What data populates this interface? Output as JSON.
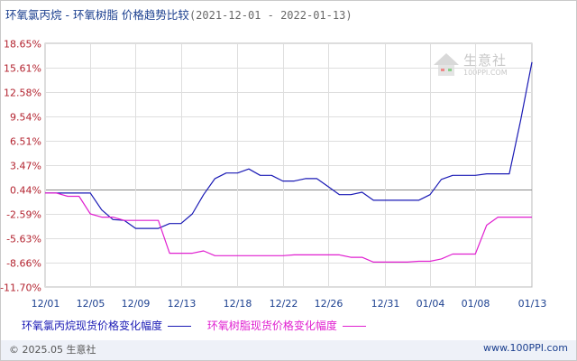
{
  "title": {
    "main": "环氧氯丙烷 - 环氧树脂 价格趋势比较",
    "range": "(2021-12-01 - 2022-01-13)"
  },
  "watermark": {
    "name": "生意社",
    "url": "100PPI.COM"
  },
  "legend": [
    {
      "label": "环氧氯丙烷现货价格变化幅度",
      "color": "#1a1ab5"
    },
    {
      "label": "环氧树脂现货价格变化幅度",
      "color": "#e020d0"
    }
  ],
  "footer": {
    "left": "© 2025.05 生意社",
    "right": "www.100PPI.com"
  },
  "chart_data": {
    "type": "line",
    "title": "环氧氯丙烷 - 环氧树脂 价格趋势比较",
    "ylabel": "",
    "xlabel": "",
    "ylim": [
      -11.7,
      18.65
    ],
    "y_ticks": [
      "18.65%",
      "15.61%",
      "12.58%",
      "9.54%",
      "6.51%",
      "3.47%",
      "0.44%",
      "-2.59%",
      "-5.63%",
      "-8.66%",
      "-11.70%"
    ],
    "y_tick_values": [
      18.65,
      15.61,
      12.58,
      9.54,
      6.51,
      3.47,
      0.44,
      -2.59,
      -5.63,
      -8.66,
      -11.7
    ],
    "x_ticks": [
      "12/01",
      "12/05",
      "12/09",
      "12/13",
      "12/18",
      "12/22",
      "12/26",
      "12/31",
      "01/04",
      "01/08",
      "01/13"
    ],
    "x_tick_values": [
      "2021-12-01",
      "2021-12-05",
      "2021-12-09",
      "2021-12-13",
      "2021-12-18",
      "2021-12-22",
      "2021-12-26",
      "2021-12-31",
      "2022-01-04",
      "2022-01-08",
      "2022-01-13"
    ],
    "grid": true,
    "series": [
      {
        "name": "环氧氯丙烷现货价格变化幅度",
        "color": "#1a1ab5",
        "points": [
          [
            "2021-12-01",
            0.0
          ],
          [
            "2021-12-02",
            0.0
          ],
          [
            "2021-12-03",
            0.0
          ],
          [
            "2021-12-04",
            0.0
          ],
          [
            "2021-12-05",
            0.0
          ],
          [
            "2021-12-06",
            -2.1
          ],
          [
            "2021-12-07",
            -3.3
          ],
          [
            "2021-12-08",
            -3.4
          ],
          [
            "2021-12-09",
            -4.4
          ],
          [
            "2021-12-10",
            -4.4
          ],
          [
            "2021-12-11",
            -4.4
          ],
          [
            "2021-12-12",
            -3.8
          ],
          [
            "2021-12-13",
            -3.8
          ],
          [
            "2021-12-14",
            -2.6
          ],
          [
            "2021-12-15",
            -0.2
          ],
          [
            "2021-12-16",
            1.8
          ],
          [
            "2021-12-17",
            2.5
          ],
          [
            "2021-12-18",
            2.5
          ],
          [
            "2021-12-19",
            3.0
          ],
          [
            "2021-12-20",
            2.2
          ],
          [
            "2021-12-21",
            2.2
          ],
          [
            "2021-12-22",
            1.5
          ],
          [
            "2021-12-23",
            1.5
          ],
          [
            "2021-12-24",
            1.8
          ],
          [
            "2021-12-25",
            1.8
          ],
          [
            "2021-12-26",
            0.8
          ],
          [
            "2021-12-27",
            -0.2
          ],
          [
            "2021-12-28",
            -0.2
          ],
          [
            "2021-12-29",
            0.1
          ],
          [
            "2021-12-30",
            -0.9
          ],
          [
            "2021-12-31",
            -0.9
          ],
          [
            "2022-01-01",
            -0.9
          ],
          [
            "2022-01-02",
            -0.9
          ],
          [
            "2022-01-03",
            -0.9
          ],
          [
            "2022-01-04",
            -0.2
          ],
          [
            "2022-01-05",
            1.7
          ],
          [
            "2022-01-06",
            2.2
          ],
          [
            "2022-01-07",
            2.2
          ],
          [
            "2022-01-08",
            2.2
          ],
          [
            "2022-01-09",
            2.4
          ],
          [
            "2022-01-10",
            2.4
          ],
          [
            "2022-01-11",
            2.4
          ],
          [
            "2022-01-12",
            9.0
          ],
          [
            "2022-01-13",
            16.3
          ]
        ]
      },
      {
        "name": "环氧树脂现货价格变化幅度",
        "color": "#e020d0",
        "points": [
          [
            "2021-12-01",
            0.0
          ],
          [
            "2021-12-02",
            0.0
          ],
          [
            "2021-12-03",
            -0.4
          ],
          [
            "2021-12-04",
            -0.4
          ],
          [
            "2021-12-05",
            -2.6
          ],
          [
            "2021-12-06",
            -3.0
          ],
          [
            "2021-12-07",
            -3.0
          ],
          [
            "2021-12-08",
            -3.4
          ],
          [
            "2021-12-09",
            -3.4
          ],
          [
            "2021-12-10",
            -3.4
          ],
          [
            "2021-12-11",
            -3.4
          ],
          [
            "2021-12-12",
            -7.5
          ],
          [
            "2021-12-13",
            -7.5
          ],
          [
            "2021-12-14",
            -7.5
          ],
          [
            "2021-12-15",
            -7.2
          ],
          [
            "2021-12-16",
            -7.8
          ],
          [
            "2021-12-17",
            -7.8
          ],
          [
            "2021-12-18",
            -7.8
          ],
          [
            "2021-12-19",
            -7.8
          ],
          [
            "2021-12-20",
            -7.8
          ],
          [
            "2021-12-21",
            -7.8
          ],
          [
            "2021-12-22",
            -7.8
          ],
          [
            "2021-12-23",
            -7.7
          ],
          [
            "2021-12-24",
            -7.7
          ],
          [
            "2021-12-25",
            -7.7
          ],
          [
            "2021-12-26",
            -7.7
          ],
          [
            "2021-12-27",
            -7.7
          ],
          [
            "2021-12-28",
            -8.0
          ],
          [
            "2021-12-29",
            -8.0
          ],
          [
            "2021-12-30",
            -8.6
          ],
          [
            "2021-12-31",
            -8.6
          ],
          [
            "2022-01-01",
            -8.6
          ],
          [
            "2022-01-02",
            -8.6
          ],
          [
            "2022-01-03",
            -8.5
          ],
          [
            "2022-01-04",
            -8.5
          ],
          [
            "2022-01-05",
            -8.2
          ],
          [
            "2022-01-06",
            -7.6
          ],
          [
            "2022-01-07",
            -7.6
          ],
          [
            "2022-01-08",
            -7.6
          ],
          [
            "2022-01-09",
            -4.0
          ],
          [
            "2022-01-10",
            -3.0
          ],
          [
            "2022-01-11",
            -3.0
          ],
          [
            "2022-01-12",
            -3.0
          ],
          [
            "2022-01-13",
            -3.0
          ]
        ]
      }
    ]
  }
}
